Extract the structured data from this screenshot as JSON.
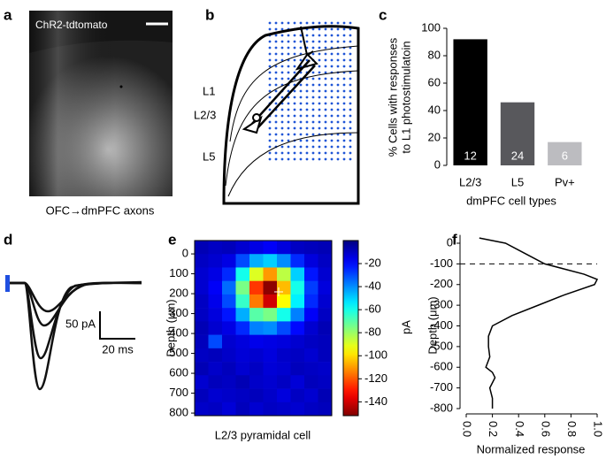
{
  "panels": {
    "a": {
      "label": "a",
      "image_label": "ChR2-tdtomato",
      "caption": "OFC→dmPFC axons"
    },
    "b": {
      "label": "b",
      "layers": [
        "L1",
        "L2/3",
        "L5"
      ]
    },
    "d": {
      "label": "d",
      "scale_y": "50 pA",
      "scale_x": "20 ms"
    }
  },
  "chart_data": [
    {
      "type": "bar",
      "panel": "c",
      "ylabel": [
        "% Cells with responses",
        "to L1 photostimulatoin"
      ],
      "xlabel": "dmPFC cell types",
      "categories": [
        "L2/3",
        "L5",
        "Pv+"
      ],
      "values": [
        92,
        46,
        17
      ],
      "counts": [
        12,
        24,
        6
      ],
      "colors": [
        "#000000",
        "#58585c",
        "#bcbcc0"
      ],
      "ylim": [
        0,
        100
      ],
      "yticks": [
        0,
        20,
        40,
        60,
        80,
        100
      ]
    },
    {
      "type": "heatmap",
      "panel": "e",
      "ylabel": "Depth (μm)",
      "caption": "L2/3 pyramidal cell",
      "colorbar_label": "pA",
      "ylim": [
        -67,
        813
      ],
      "yticks": [
        0,
        100,
        200,
        300,
        400,
        500,
        600,
        700,
        800
      ],
      "clim": [
        -152,
        0
      ],
      "cticks": [
        -20,
        -40,
        -60,
        -80,
        -100,
        -120,
        -140
      ],
      "values": [
        [
          -8,
          -10,
          -9,
          -12,
          -15,
          -18,
          -14,
          -10,
          -9,
          -8
        ],
        [
          -10,
          -12,
          -15,
          -30,
          -45,
          -50,
          -40,
          -25,
          -14,
          -10
        ],
        [
          -12,
          -15,
          -25,
          -60,
          -90,
          -110,
          -85,
          -50,
          -22,
          -12
        ],
        [
          -12,
          -18,
          -35,
          -75,
          -125,
          -150,
          -105,
          -60,
          -28,
          -14
        ],
        [
          -10,
          -16,
          -30,
          -65,
          -115,
          -140,
          -95,
          -55,
          -25,
          -12
        ],
        [
          -10,
          -14,
          -22,
          -45,
          -70,
          -75,
          -60,
          -38,
          -18,
          -10
        ],
        [
          -8,
          -12,
          -15,
          -25,
          -38,
          -40,
          -30,
          -20,
          -12,
          -8
        ],
        [
          -9,
          -30,
          -12,
          -14,
          -16,
          -15,
          -14,
          -12,
          -10,
          -9
        ],
        [
          -10,
          -9,
          -11,
          -13,
          -12,
          -14,
          -11,
          -10,
          -12,
          -9
        ],
        [
          -8,
          -11,
          -9,
          -12,
          -10,
          -13,
          -12,
          -9,
          -10,
          -11
        ],
        [
          -12,
          -9,
          -10,
          -8,
          -11,
          -12,
          -10,
          -13,
          -9,
          -10
        ],
        [
          -9,
          -12,
          -11,
          -10,
          -9,
          -11,
          -14,
          -10,
          -12,
          -8
        ],
        [
          -11,
          -10,
          -13,
          -9,
          -12,
          -10,
          -11,
          -12,
          -10,
          -9
        ]
      ]
    },
    {
      "type": "line",
      "panel": "f",
      "ylabel": "Depth (μm)",
      "xlabel": "Normalized response",
      "depths": [
        25,
        0,
        -50,
        -100,
        -150,
        -175,
        -200,
        -250,
        -300,
        -350,
        -400,
        -450,
        -500,
        -550,
        -600,
        -625,
        -650,
        -700,
        -750,
        -800
      ],
      "values": [
        0.1,
        0.3,
        0.45,
        0.6,
        0.9,
        1.0,
        0.98,
        0.75,
        0.55,
        0.35,
        0.2,
        0.17,
        0.17,
        0.18,
        0.15,
        0.2,
        0.22,
        0.18,
        0.2,
        0.2
      ],
      "color": "#000000",
      "reference_y": -100,
      "xlim": [
        0,
        1
      ],
      "xticks": [
        {
          "value": 0,
          "label": "0.0"
        },
        {
          "value": 0.2,
          "label": "0.2"
        },
        {
          "value": 0.4,
          "label": "0.4"
        },
        {
          "value": 0.6,
          "label": "0.6"
        },
        {
          "value": 0.8,
          "label": "0.8"
        },
        {
          "value": 1,
          "label": "1.0"
        }
      ],
      "ylim": [
        -800,
        40
      ],
      "yticks": [
        0,
        -100,
        -200,
        -300,
        -400,
        -500,
        -600,
        -700,
        -800
      ]
    }
  ]
}
